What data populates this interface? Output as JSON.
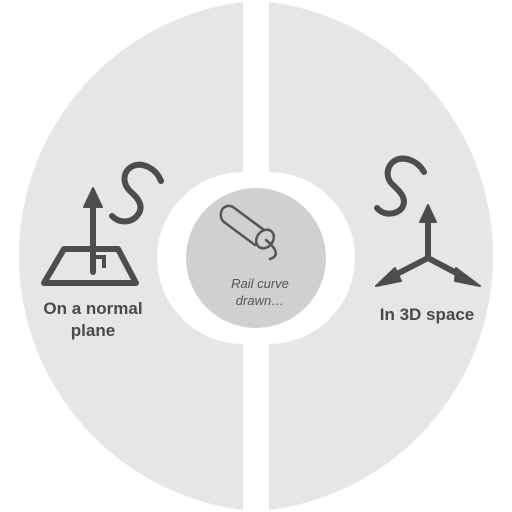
{
  "radial_menu": {
    "left_option": {
      "line1": "On a normal",
      "line2": "plane",
      "icon": "normal-plane-icon"
    },
    "right_option": {
      "label": "In 3D space",
      "icon": "3d-space-axes-icon"
    },
    "center": {
      "line1": "Rail curve",
      "line2": "drawn…",
      "icon": "rail-tube-icon"
    }
  },
  "colors": {
    "segment_fill": "#e6e6e6",
    "center_fill": "#d0d0d0",
    "icon_stroke": "#4d4d4d",
    "text": "#4a4a4a"
  }
}
